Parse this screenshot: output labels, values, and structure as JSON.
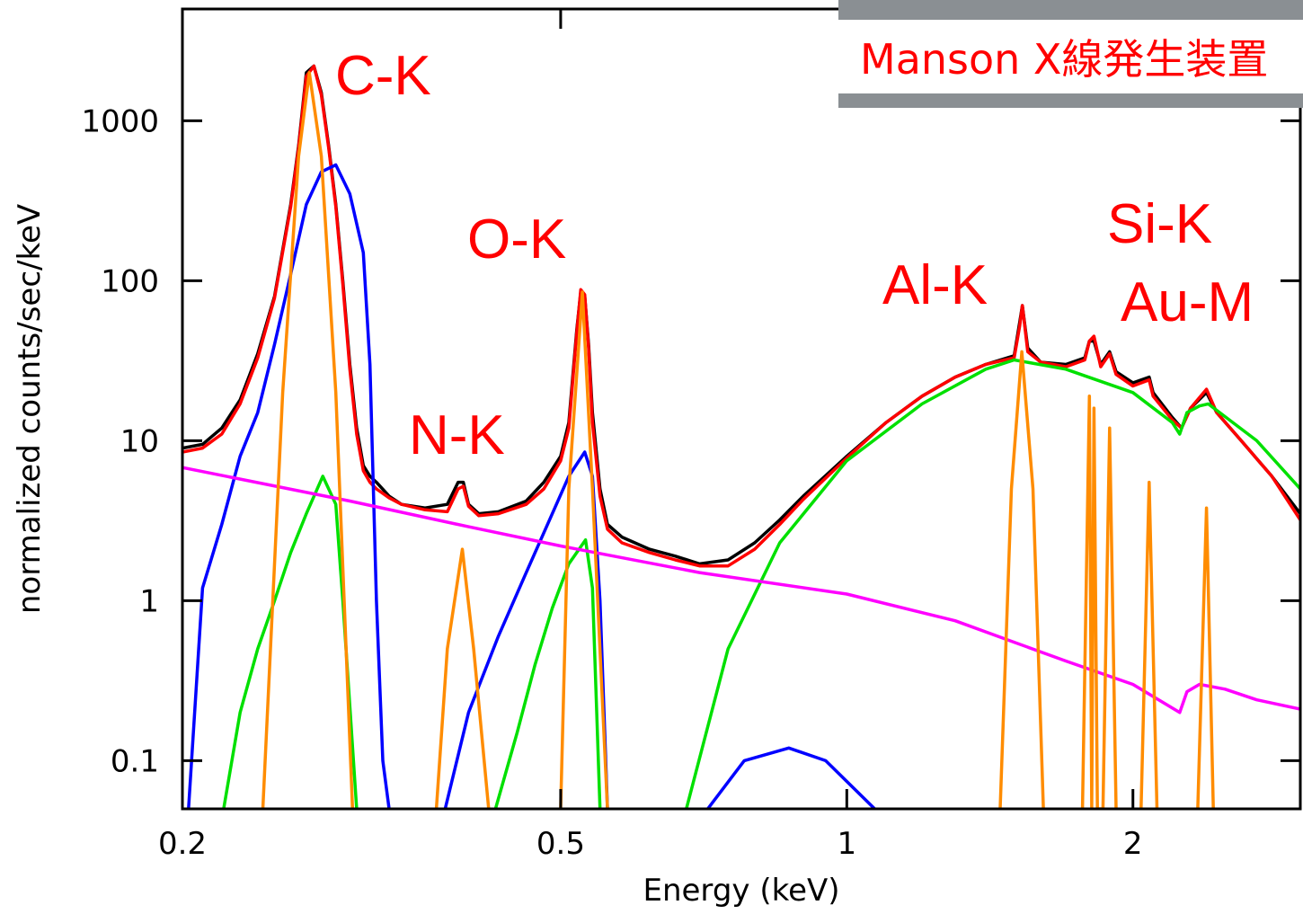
{
  "chart_data": {
    "type": "line",
    "xlabel": "Energy (keV)",
    "ylabel": "normalized counts/sec/keV",
    "xscale": "log",
    "yscale": "log",
    "xlim": [
      0.2,
      3.0
    ],
    "ylim": [
      0.05,
      5000
    ],
    "xticks": [
      0.2,
      0.5,
      1,
      2
    ],
    "yticks": [
      0.1,
      1,
      10,
      100,
      1000
    ],
    "annotations": [
      "C-K",
      "O-K",
      "N-K",
      "Al-K",
      "Si-K",
      "Au-M"
    ],
    "inset_caption": "Manson X線発生装置",
    "series": [
      {
        "color": "#000000",
        "x": [
          0.2,
          0.21,
          0.22,
          0.23,
          0.24,
          0.25,
          0.26,
          0.265,
          0.27,
          0.275,
          0.28,
          0.285,
          0.29,
          0.295,
          0.3,
          0.305,
          0.31,
          0.315,
          0.32,
          0.33,
          0.34,
          0.36,
          0.38,
          0.39,
          0.395,
          0.4,
          0.41,
          0.43,
          0.46,
          0.48,
          0.5,
          0.51,
          0.52,
          0.525,
          0.53,
          0.535,
          0.54,
          0.55,
          0.56,
          0.58,
          0.62,
          0.66,
          0.7,
          0.75,
          0.8,
          0.85,
          0.9,
          1.0,
          1.1,
          1.2,
          1.3,
          1.4,
          1.5,
          1.52,
          1.53,
          1.55,
          1.6,
          1.7,
          1.78,
          1.8,
          1.82,
          1.85,
          1.89,
          1.92,
          2.0,
          2.08,
          2.1,
          2.2,
          2.25,
          2.3,
          2.39,
          2.45,
          2.6,
          2.8,
          3.0
        ],
        "values": [
          9,
          9.5,
          12,
          18,
          35,
          80,
          300,
          700,
          2000,
          2200,
          1500,
          700,
          300,
          100,
          30,
          12,
          7,
          6,
          5.5,
          4.5,
          4,
          3.8,
          4,
          5.5,
          5.5,
          4,
          3.5,
          3.6,
          4.2,
          5.5,
          8,
          13,
          50,
          85,
          80,
          40,
          15,
          5,
          3,
          2.5,
          2.1,
          1.9,
          1.7,
          1.8,
          2.3,
          3.2,
          4.5,
          8,
          13,
          19,
          25,
          30,
          34,
          55,
          70,
          38,
          31,
          30,
          33,
          42,
          42,
          30,
          36,
          27,
          23,
          25,
          20,
          14,
          12,
          16,
          20,
          15,
          10,
          6,
          3.5
        ]
      },
      {
        "color": "#ff0000",
        "x": [
          0.2,
          0.21,
          0.22,
          0.23,
          0.24,
          0.25,
          0.26,
          0.265,
          0.27,
          0.275,
          0.28,
          0.285,
          0.29,
          0.295,
          0.3,
          0.305,
          0.31,
          0.315,
          0.32,
          0.33,
          0.34,
          0.36,
          0.38,
          0.39,
          0.395,
          0.4,
          0.41,
          0.43,
          0.46,
          0.48,
          0.5,
          0.51,
          0.52,
          0.525,
          0.53,
          0.535,
          0.54,
          0.55,
          0.56,
          0.58,
          0.62,
          0.66,
          0.7,
          0.75,
          0.8,
          0.85,
          0.9,
          1.0,
          1.1,
          1.2,
          1.3,
          1.4,
          1.5,
          1.52,
          1.53,
          1.55,
          1.6,
          1.7,
          1.78,
          1.8,
          1.82,
          1.85,
          1.89,
          1.92,
          2.0,
          2.08,
          2.1,
          2.2,
          2.25,
          2.3,
          2.39,
          2.45,
          2.6,
          2.8,
          3.0
        ],
        "values": [
          8.5,
          9,
          11,
          17,
          33,
          78,
          290,
          680,
          1900,
          2200,
          1450,
          680,
          290,
          95,
          28,
          11,
          6.5,
          5.5,
          5,
          4.4,
          4,
          3.7,
          3.6,
          5,
          5.2,
          3.9,
          3.4,
          3.5,
          4,
          5,
          7.5,
          12,
          48,
          88,
          82,
          38,
          13,
          4.5,
          2.8,
          2.3,
          2,
          1.8,
          1.65,
          1.65,
          2.1,
          3,
          4.3,
          7.8,
          13,
          19,
          25,
          30,
          33,
          52,
          70,
          36,
          31,
          29,
          32,
          42,
          45,
          29,
          35,
          26,
          22,
          24,
          19,
          13.5,
          12,
          16,
          21,
          15,
          10,
          6,
          3.2
        ]
      },
      {
        "color": "#0000ff",
        "x": [
          0.203,
          0.21,
          0.22,
          0.23,
          0.24,
          0.25,
          0.26,
          0.27,
          0.28,
          0.29,
          0.3,
          0.31,
          0.315,
          0.32,
          0.325,
          0.33,
          null,
          0.378,
          0.4,
          0.43,
          0.46,
          0.49,
          0.51,
          0.53,
          0.54,
          0.55,
          0.56,
          null,
          0.714,
          0.78,
          0.869,
          0.95,
          1.07
        ],
        "values": [
          0.05,
          1.2,
          3,
          8,
          15,
          40,
          110,
          300,
          480,
          530,
          350,
          150,
          30,
          1,
          0.1,
          0.05,
          null,
          0.05,
          0.2,
          0.6,
          1.5,
          3.5,
          6,
          8.5,
          6,
          1,
          0.05,
          null,
          0.05,
          0.1,
          0.12,
          0.1,
          0.05
        ]
      },
      {
        "color": "#00e000",
        "x": [
          0.221,
          0.23,
          0.24,
          0.25,
          0.26,
          0.27,
          0.281,
          0.29,
          0.295,
          0.305,
          null,
          0.427,
          0.45,
          0.47,
          0.49,
          0.51,
          0.531,
          0.54,
          0.55,
          null,
          0.678,
          0.75,
          0.85,
          1.0,
          1.2,
          1.4,
          1.5,
          1.7,
          2.0,
          2.2,
          2.24,
          2.28,
          2.35,
          2.4,
          2.7,
          3.0
        ],
        "values": [
          0.05,
          0.2,
          0.5,
          1,
          2,
          3.5,
          6,
          4,
          1,
          0.05,
          null,
          0.05,
          0.15,
          0.4,
          0.9,
          1.7,
          2.4,
          1.2,
          0.05,
          null,
          0.05,
          0.5,
          2.3,
          7.5,
          17,
          28,
          32,
          28,
          20,
          13,
          11,
          15,
          16.5,
          17,
          10,
          5
        ]
      },
      {
        "color": "#ff00ff",
        "x": [
          0.2,
          0.3,
          0.4,
          0.5,
          0.7,
          1.0,
          1.3,
          1.5,
          1.7,
          2.0,
          2.24,
          2.28,
          2.35,
          2.5,
          2.7,
          3.0
        ],
        "values": [
          6.8,
          4.2,
          2.9,
          2.2,
          1.5,
          1.1,
          0.75,
          0.55,
          0.42,
          0.3,
          0.2,
          0.27,
          0.3,
          0.28,
          0.24,
          0.21
        ]
      },
      {
        "color": "#ff8c00",
        "x": [
          0.243,
          0.255,
          0.265,
          0.272,
          0.28,
          0.29,
          0.302,
          null,
          0.37,
          0.38,
          0.394,
          0.405,
          0.42,
          null,
          0.5,
          0.51,
          0.527,
          0.54,
          0.56,
          null,
          1.45,
          1.49,
          1.528,
          1.57,
          1.61,
          null,
          1.77,
          1.8,
          1.81,
          1.82,
          1.835,
          1.86,
          1.89,
          1.92,
          null,
          2.04,
          2.08,
          2.12,
          null,
          2.34,
          2.39,
          2.43
        ],
        "values": [
          0.05,
          20,
          600,
          2000,
          600,
          20,
          0.05,
          null,
          0.05,
          0.5,
          2.1,
          0.5,
          0.05,
          null,
          0.05,
          5,
          85,
          5,
          0.05,
          null,
          0.05,
          5,
          36,
          5,
          0.05,
          null,
          0.05,
          19,
          0.05,
          16,
          0.05,
          0.05,
          12,
          0.05,
          null,
          0.05,
          5.5,
          0.05,
          null,
          0.05,
          3.8,
          0.05
        ]
      }
    ]
  }
}
